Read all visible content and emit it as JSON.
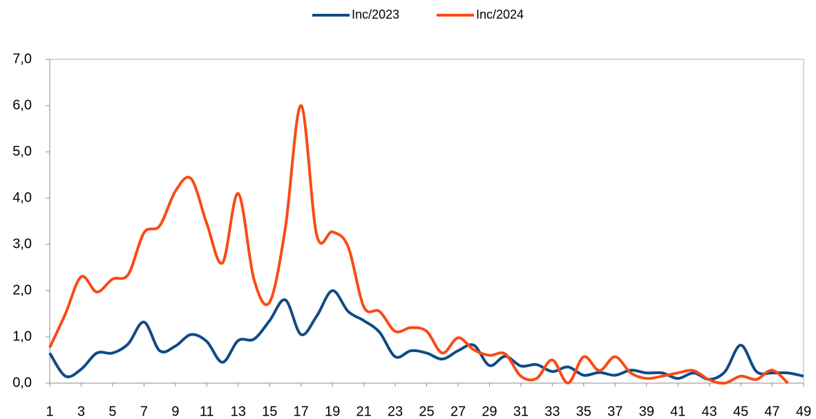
{
  "chart_data": {
    "type": "line",
    "x": [
      1,
      2,
      3,
      4,
      5,
      6,
      7,
      8,
      9,
      10,
      11,
      12,
      13,
      14,
      15,
      16,
      17,
      18,
      19,
      20,
      21,
      22,
      23,
      24,
      25,
      26,
      27,
      28,
      29,
      30,
      31,
      32,
      33,
      34,
      35,
      36,
      37,
      38,
      39,
      40,
      41,
      42,
      43,
      44,
      45,
      46,
      47,
      48,
      49
    ],
    "series": [
      {
        "name": "Inc/2023",
        "color": "#0f4a86",
        "values": [
          0.65,
          0.15,
          0.3,
          0.65,
          0.65,
          0.85,
          1.32,
          0.7,
          0.8,
          1.05,
          0.9,
          0.45,
          0.92,
          0.95,
          1.35,
          1.8,
          1.05,
          1.45,
          2.0,
          1.55,
          1.35,
          1.1,
          0.57,
          0.7,
          0.65,
          0.52,
          0.7,
          0.82,
          0.38,
          0.58,
          0.37,
          0.4,
          0.25,
          0.35,
          0.17,
          0.23,
          0.17,
          0.28,
          0.22,
          0.22,
          0.1,
          0.22,
          0.08,
          0.25,
          0.82,
          0.25,
          0.22,
          0.22,
          0.15
        ]
      },
      {
        "name": "Inc/2024",
        "color": "#fa4a14",
        "values": [
          0.77,
          1.5,
          2.3,
          1.97,
          2.25,
          2.35,
          3.25,
          3.4,
          4.15,
          4.42,
          3.45,
          2.6,
          4.1,
          2.25,
          1.75,
          3.35,
          6.0,
          3.2,
          3.27,
          2.95,
          1.65,
          1.55,
          1.12,
          1.2,
          1.12,
          0.65,
          0.98,
          0.72,
          0.6,
          0.63,
          0.15,
          0.1,
          0.5,
          0.0,
          0.57,
          0.27,
          0.57,
          0.22,
          0.1,
          0.15,
          0.22,
          0.27,
          0.07,
          0.0,
          0.15,
          0.08,
          0.28,
          0.0,
          null
        ]
      }
    ],
    "xlim": [
      1,
      49
    ],
    "xticks": [
      1,
      3,
      5,
      7,
      9,
      11,
      13,
      15,
      17,
      19,
      21,
      23,
      25,
      27,
      29,
      31,
      33,
      35,
      37,
      39,
      41,
      43,
      45,
      47,
      49
    ],
    "ylim": [
      0,
      7
    ],
    "yticks": [
      {
        "value": 0,
        "label": "0,0"
      },
      {
        "value": 1,
        "label": "1,0"
      },
      {
        "value": 2,
        "label": "2,0"
      },
      {
        "value": 3,
        "label": "3,0"
      },
      {
        "value": 4,
        "label": "4,0"
      },
      {
        "value": 5,
        "label": "5,0"
      },
      {
        "value": 6,
        "label": "6,0"
      },
      {
        "value": 7,
        "label": "7,0"
      }
    ],
    "legend": "top",
    "grid": false
  }
}
